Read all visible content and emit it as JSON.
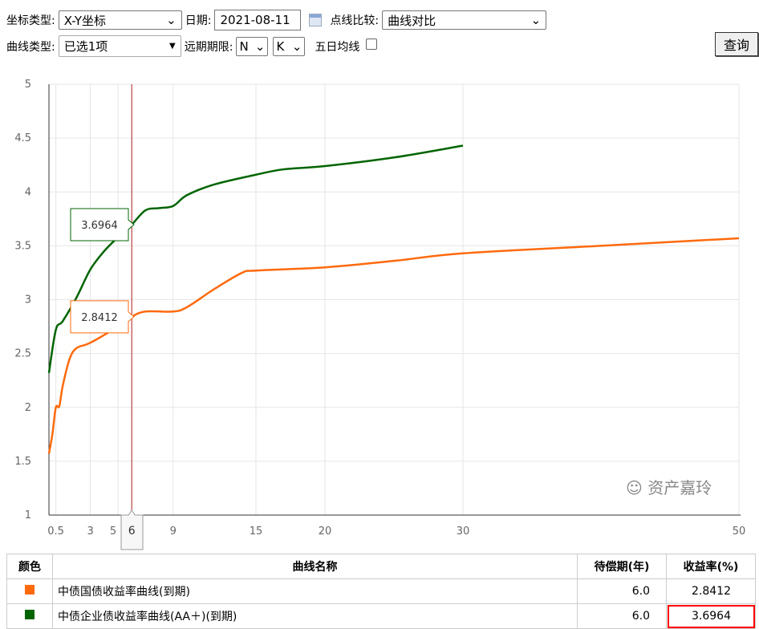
{
  "toolbar": {
    "coord_type_label": "坐标类型:",
    "coord_type_value": "X-Y坐标",
    "date_label": "日期:",
    "date_value": "2021-08-11",
    "compare_label": "点线比较:",
    "compare_value": "曲线对比",
    "curve_type_label": "曲线类型:",
    "curve_type_value": "已选1项",
    "far_label": "远期期限:",
    "far_n": "N",
    "far_k": "K",
    "ma5_label": "五日均线",
    "ma5_checked": false,
    "query_label": "查询"
  },
  "chart_data": {
    "type": "line",
    "xlim": [
      0,
      50
    ],
    "ylim": [
      1,
      5
    ],
    "x_ticks": [
      "0.5",
      "3",
      "5",
      "6",
      "9",
      "15",
      "20",
      "30",
      "50"
    ],
    "x_tick_values": [
      0.5,
      3,
      5,
      6,
      9,
      15,
      20,
      30,
      50
    ],
    "y_ticks": [
      "1",
      "1.5",
      "2",
      "2.5",
      "3",
      "3.5",
      "4",
      "4.5",
      "5"
    ],
    "crosshair_x": 6,
    "crosshair_label": "6",
    "grid": true,
    "series": [
      {
        "color": "#ff6a0d",
        "tooltip": "2.8412",
        "points": [
          [
            0,
            1.57
          ],
          [
            0.25,
            1.75
          ],
          [
            0.5,
            2.0
          ],
          [
            0.75,
            2.01
          ],
          [
            1,
            2.2
          ],
          [
            1.5,
            2.45
          ],
          [
            2,
            2.55
          ],
          [
            3,
            2.6
          ],
          [
            5,
            2.75
          ],
          [
            6,
            2.8412
          ],
          [
            7,
            2.89
          ],
          [
            9,
            2.89
          ],
          [
            10,
            2.93
          ],
          [
            12,
            3.1
          ],
          [
            14,
            3.25
          ],
          [
            15,
            3.27
          ],
          [
            20,
            3.3
          ],
          [
            25,
            3.36
          ],
          [
            30,
            3.43
          ],
          [
            40,
            3.5
          ],
          [
            50,
            3.57
          ]
        ]
      },
      {
        "color": "#006400",
        "tooltip": "3.6964",
        "points": [
          [
            0,
            2.32
          ],
          [
            0.5,
            2.72
          ],
          [
            1,
            2.8
          ],
          [
            2,
            3.02
          ],
          [
            3,
            3.28
          ],
          [
            4,
            3.45
          ],
          [
            5,
            3.58
          ],
          [
            6,
            3.6964
          ],
          [
            7,
            3.83
          ],
          [
            8,
            3.85
          ],
          [
            9,
            3.87
          ],
          [
            10,
            3.97
          ],
          [
            12,
            4.07
          ],
          [
            15,
            4.16
          ],
          [
            17,
            4.21
          ],
          [
            20,
            4.24
          ],
          [
            25,
            4.32
          ],
          [
            30,
            4.43
          ]
        ]
      }
    ]
  },
  "table": {
    "headers": [
      "颜色",
      "曲线名称",
      "待偿期(年)",
      "收益率(%)"
    ],
    "rows": [
      {
        "color": "#ff6a0d",
        "name": "中债国债收益率曲线(到期)",
        "term": "6.0",
        "yield": "2.8412"
      },
      {
        "color": "#006400",
        "name": "中债企业债收益率曲线(AA＋)(到期)",
        "term": "6.0",
        "yield": "3.6964"
      }
    ]
  },
  "watermark": "资产嘉玲"
}
